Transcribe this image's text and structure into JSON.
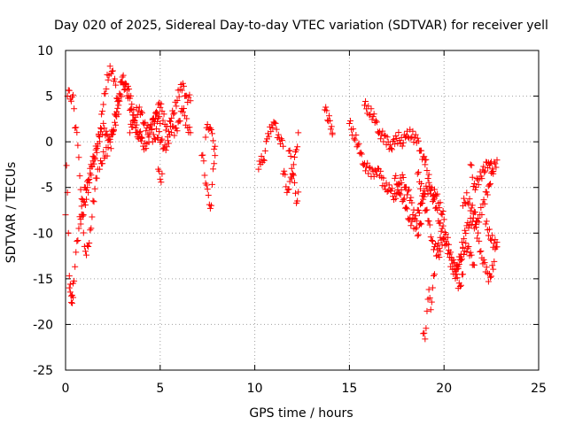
{
  "chart_data": {
    "type": "scatter",
    "title": "Day 020 of 2025, Sidereal Day-to-day VTEC variation (SDTVAR) for receiver yell",
    "xlabel": "GPS time / hours",
    "ylabel": "SDTVAR / TECUs",
    "xlim": [
      0,
      25
    ],
    "ylim": [
      -25,
      10
    ],
    "xticks": [
      0,
      5,
      10,
      15,
      20,
      25
    ],
    "yticks": [
      -25,
      -20,
      -15,
      -10,
      -5,
      0,
      5,
      10
    ],
    "xtick_labels": [
      "0",
      "5",
      "10",
      "15",
      "20",
      "25"
    ],
    "ytick_labels": [
      "-25",
      "-20",
      "-15",
      "-10",
      "-5",
      "0",
      "5",
      "10"
    ],
    "grid": true,
    "marker": "+",
    "series": [
      {
        "name": "SDTVAR",
        "color": "#ff0000",
        "traces": [
          {
            "x": [
              0.0,
              0.05,
              0.1,
              0.2,
              0.3,
              0.4
            ],
            "y": [
              -8.0,
              -3.0,
              -5.0,
              -15.0,
              -17.0,
              -15.5
            ]
          },
          {
            "x": [
              0.1,
              0.2,
              0.3,
              0.4,
              0.45,
              0.5,
              0.6,
              0.7,
              0.8,
              0.9,
              1.0,
              1.1,
              1.3,
              1.5,
              1.7
            ],
            "y": [
              5.0,
              5.2,
              5.0,
              4.8,
              3.5,
              2.0,
              0.5,
              -1.5,
              -5.0,
              -8.5,
              -11.0,
              -12.5,
              -10.0,
              -6.0,
              -3.0
            ]
          },
          {
            "x": [
              0.2,
              0.3,
              0.4,
              0.5,
              0.6,
              0.8,
              1.0,
              1.2,
              1.4,
              1.6,
              1.8,
              2.0,
              2.2,
              2.4,
              2.6,
              2.8
            ],
            "y": [
              -16.0,
              -18.0,
              -16.5,
              -14.0,
              -11.0,
              -8.0,
              -5.5,
              -4.0,
              -2.5,
              -1.0,
              1.0,
              4.0,
              7.0,
              8.0,
              6.5,
              4.0
            ]
          },
          {
            "x": [
              0.8,
              1.0,
              1.2,
              1.4,
              1.6,
              1.8,
              2.0,
              2.2,
              2.4,
              2.6,
              2.8,
              3.0,
              3.2,
              3.4,
              3.6,
              3.8,
              4.0
            ],
            "y": [
              -9.0,
              -7.0,
              -5.0,
              -3.0,
              -1.0,
              0.5,
              1.5,
              1.0,
              -0.5,
              2.5,
              5.0,
              7.0,
              6.0,
              4.0,
              2.0,
              1.0,
              0.5
            ]
          },
          {
            "x": [
              1.8,
              2.0,
              2.2,
              2.4,
              2.6,
              2.8,
              3.0,
              3.2,
              3.4,
              3.6,
              3.8,
              4.0,
              4.2,
              4.4,
              4.6,
              4.8,
              5.0
            ],
            "y": [
              -3.0,
              -1.5,
              -1.0,
              0.5,
              2.0,
              3.5,
              6.0,
              6.5,
              5.0,
              3.0,
              1.0,
              0.0,
              -0.5,
              0.5,
              2.0,
              3.0,
              2.0
            ]
          },
          {
            "x": [
              3.4,
              3.6,
              3.8,
              4.0,
              4.2,
              4.4,
              4.6,
              4.8,
              5.0,
              5.2,
              5.4,
              5.6,
              5.8,
              6.0,
              6.2,
              6.4,
              6.6
            ],
            "y": [
              1.0,
              2.5,
              3.5,
              3.0,
              2.0,
              1.0,
              2.0,
              3.5,
              4.0,
              2.5,
              1.0,
              2.5,
              4.0,
              5.5,
              6.0,
              5.0,
              4.5
            ]
          },
          {
            "x": [
              4.6,
              4.8,
              5.0,
              5.2,
              5.4,
              5.6,
              5.8,
              6.0,
              6.2,
              6.4,
              6.6
            ],
            "y": [
              0.0,
              1.0,
              0.5,
              -1.0,
              0.0,
              1.5,
              1.0,
              2.5,
              3.5,
              2.0,
              1.0
            ]
          },
          {
            "x": [
              4.9,
              5.0,
              5.1
            ],
            "y": [
              -3.0,
              -4.5,
              -3.5
            ]
          },
          {
            "x": [
              7.2,
              7.3,
              7.4,
              7.5,
              7.6,
              7.7,
              7.8,
              7.9
            ],
            "y": [
              -1.5,
              -2.5,
              -4.0,
              -5.5,
              -7.0,
              -6.5,
              -3.5,
              -1.5
            ]
          },
          {
            "x": [
              7.4,
              7.5,
              7.6,
              7.7,
              7.8,
              7.9
            ],
            "y": [
              0.5,
              1.5,
              2.0,
              1.0,
              0.0,
              -0.5
            ]
          },
          {
            "x": [
              10.2,
              10.35,
              10.5,
              10.65,
              10.8,
              10.95,
              11.1,
              11.3,
              11.5
            ],
            "y": [
              -3.0,
              -2.0,
              -1.5,
              0.0,
              1.5,
              2.0,
              1.5,
              0.5,
              -0.5
            ]
          },
          {
            "x": [
              11.5,
              11.6,
              11.7,
              11.8,
              11.9,
              12.0,
              12.1,
              12.2,
              12.3
            ],
            "y": [
              -3.5,
              -4.0,
              -5.0,
              -5.5,
              -4.0,
              -3.0,
              -5.0,
              -6.5,
              -5.5
            ]
          },
          {
            "x": [
              11.8,
              11.9,
              12.0,
              12.1,
              12.2,
              12.3
            ],
            "y": [
              -1.0,
              -2.0,
              -3.0,
              -2.0,
              -1.0,
              1.0
            ]
          },
          {
            "x": [
              13.7,
              13.8,
              14.1,
              14.1
            ],
            "y": [
              3.5,
              3.0,
              1.5,
              0.8
            ]
          },
          {
            "x": [
              15.0,
              15.2,
              15.4,
              15.6,
              15.8,
              16.0,
              16.2,
              16.4,
              16.6,
              16.8,
              17.0,
              17.2,
              17.4,
              17.6,
              17.8,
              18.0,
              18.2,
              18.4,
              18.6,
              18.8
            ],
            "y": [
              2.0,
              1.0,
              0.0,
              -1.5,
              -2.5,
              -3.0,
              -3.5,
              -3.0,
              -3.5,
              -4.5,
              -5.0,
              -5.5,
              -6.0,
              -5.0,
              -4.0,
              -5.0,
              -6.0,
              -8.0,
              -10.0,
              -9.0
            ]
          },
          {
            "x": [
              15.8,
              16.0,
              16.2,
              16.4,
              16.6,
              16.8,
              17.0,
              17.2,
              17.4,
              17.6,
              17.8,
              18.0,
              18.2,
              18.4,
              18.6,
              18.8,
              19.0
            ],
            "y": [
              4.0,
              3.5,
              3.0,
              2.0,
              1.0,
              0.5,
              0.0,
              -0.5,
              0.0,
              0.5,
              0.0,
              0.5,
              1.0,
              0.5,
              0.0,
              -1.0,
              -2.5
            ]
          },
          {
            "x": [
              17.4,
              17.6,
              17.8,
              18.0,
              18.2,
              18.4,
              18.6,
              18.8,
              19.0,
              19.2,
              19.4,
              19.6,
              19.8,
              20.0
            ],
            "y": [
              -4.0,
              -5.0,
              -6.0,
              -7.5,
              -8.5,
              -9.0,
              -8.0,
              -6.5,
              -5.5,
              -5.0,
              -5.5,
              -6.0,
              -7.0,
              -8.5
            ]
          },
          {
            "x": [
              18.6,
              18.8,
              19.0,
              19.2,
              19.4,
              19.6,
              19.8,
              20.0,
              20.2,
              20.4,
              20.6,
              20.8,
              21.0,
              21.2,
              21.4,
              21.6
            ],
            "y": [
              -3.5,
              -5.0,
              -7.0,
              -9.0,
              -11.0,
              -12.0,
              -11.0,
              -10.5,
              -12.0,
              -13.5,
              -14.5,
              -13.5,
              -12.0,
              -11.5,
              -12.5,
              -13.5
            ]
          },
          {
            "x": [
              19.0,
              19.2,
              19.4,
              19.6,
              19.8,
              20.0,
              20.2,
              20.4,
              20.6,
              20.8,
              21.0
            ],
            "y": [
              -2.0,
              -4.0,
              -6.0,
              -7.5,
              -9.0,
              -10.0,
              -11.0,
              -12.5,
              -14.0,
              -16.0,
              -14.5
            ]
          },
          {
            "x": [
              18.9,
              19.0,
              19.1,
              19.2,
              19.3,
              19.4,
              19.5
            ],
            "y": [
              -21.0,
              -22.0,
              -18.0,
              -16.5,
              -18.5,
              -15.5,
              -14.5
            ]
          },
          {
            "x": [
              19.6,
              19.8
            ],
            "y": [
              -12.5,
              -12.0
            ]
          },
          {
            "x": [
              20.6,
              20.8,
              21.0,
              21.2,
              21.4,
              21.6,
              21.8,
              22.0,
              22.2,
              22.4,
              22.6,
              22.8
            ],
            "y": [
              -14.5,
              -13.0,
              -11.0,
              -9.5,
              -8.5,
              -9.0,
              -10.5,
              -12.5,
              -14.0,
              -15.0,
              -13.5,
              -11.0
            ]
          },
          {
            "x": [
              21.0,
              21.2,
              21.4,
              21.6,
              21.8,
              22.0,
              22.2,
              22.4,
              22.6,
              22.8
            ],
            "y": [
              -7.0,
              -6.0,
              -7.0,
              -8.0,
              -8.5,
              -7.5,
              -6.0,
              -4.5,
              -3.0,
              -2.0
            ]
          },
          {
            "x": [
              21.4,
              21.6,
              22.4,
              22.6
            ],
            "y": [
              -2.5,
              -5.0,
              -2.0,
              -3.5
            ]
          },
          {
            "x": [
              22.2,
              22.4,
              22.6,
              22.8
            ],
            "y": [
              -9.0,
              -10.0,
              -11.0,
              -11.5
            ]
          }
        ]
      }
    ]
  }
}
